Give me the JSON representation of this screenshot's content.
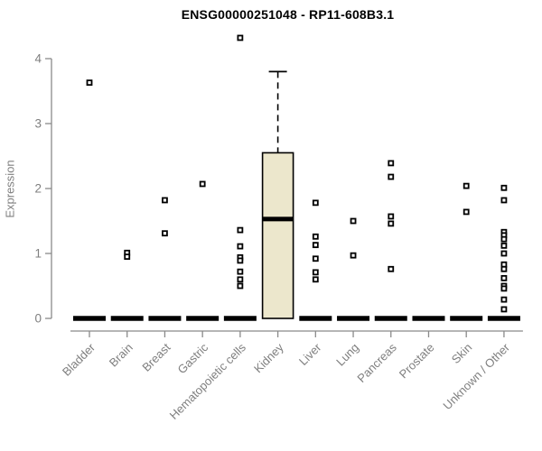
{
  "title": "ENSG00000251048 - RP11-608B3.1",
  "colors": {
    "background": "#ffffff",
    "box_fill": "#ece7cc",
    "data_color": "#000000",
    "axis_color": "#8a8a8a",
    "label_color": "#7f7f7f",
    "title_color": "#000000"
  },
  "chart_data": {
    "type": "box",
    "title": "ENSG00000251048 - RP11-608B3.1",
    "xlabel": "",
    "ylabel": "Expression",
    "ylim": [
      0,
      4.4
    ],
    "yticks": [
      0,
      1,
      2,
      3,
      4
    ],
    "grid": false,
    "legend": "none",
    "x_label_rotation": 45,
    "marker": "open-square",
    "categories": [
      "Bladder",
      "Brain",
      "Breast",
      "Gastric",
      "Hematopoietic cells",
      "Kidney",
      "Liver",
      "Lung",
      "Pancreas",
      "Prostate",
      "Skin",
      "Unknown / Other"
    ],
    "series": [
      {
        "name": "Bladder",
        "q1": 0,
        "median": 0,
        "q3": 0,
        "whisker_low": 0,
        "whisker_high": 0,
        "outliers": [
          3.63
        ]
      },
      {
        "name": "Brain",
        "q1": 0,
        "median": 0,
        "q3": 0,
        "whisker_low": 0,
        "whisker_high": 0,
        "outliers": [
          1.01,
          0.95
        ]
      },
      {
        "name": "Breast",
        "q1": 0,
        "median": 0,
        "q3": 0,
        "whisker_low": 0,
        "whisker_high": 0,
        "outliers": [
          1.82,
          1.31
        ]
      },
      {
        "name": "Gastric",
        "q1": 0,
        "median": 0,
        "q3": 0,
        "whisker_low": 0,
        "whisker_high": 0,
        "outliers": [
          2.07
        ]
      },
      {
        "name": "Hematopoietic cells",
        "q1": 0,
        "median": 0,
        "q3": 0,
        "whisker_low": 0,
        "whisker_high": 0,
        "outliers": [
          4.32,
          1.36,
          1.11,
          0.94,
          0.89,
          0.72,
          0.6,
          0.5
        ]
      },
      {
        "name": "Kidney",
        "q1": 0,
        "median": 1.53,
        "q3": 2.55,
        "whisker_low": 0,
        "whisker_high": 3.8,
        "outliers": []
      },
      {
        "name": "Liver",
        "q1": 0,
        "median": 0,
        "q3": 0,
        "whisker_low": 0,
        "whisker_high": 0,
        "outliers": [
          1.78,
          1.26,
          1.13,
          0.92,
          0.71,
          0.6
        ]
      },
      {
        "name": "Lung",
        "q1": 0,
        "median": 0,
        "q3": 0,
        "whisker_low": 0,
        "whisker_high": 0,
        "outliers": [
          1.5,
          0.97
        ]
      },
      {
        "name": "Pancreas",
        "q1": 0,
        "median": 0,
        "q3": 0,
        "whisker_low": 0,
        "whisker_high": 0,
        "outliers": [
          2.39,
          2.18,
          1.57,
          1.46,
          0.76
        ]
      },
      {
        "name": "Prostate",
        "q1": 0,
        "median": 0,
        "q3": 0,
        "whisker_low": 0,
        "whisker_high": 0,
        "outliers": []
      },
      {
        "name": "Skin",
        "q1": 0,
        "median": 0,
        "q3": 0,
        "whisker_low": 0,
        "whisker_high": 0,
        "outliers": [
          2.04,
          1.64
        ]
      },
      {
        "name": "Unknown / Other",
        "q1": 0,
        "median": 0,
        "q3": 0,
        "whisker_low": 0,
        "whisker_high": 0,
        "outliers": [
          2.01,
          1.82,
          1.33,
          1.28,
          1.22,
          1.12,
          1.0,
          0.83,
          0.76,
          0.62,
          0.5,
          0.46,
          0.29,
          0.14
        ]
      }
    ]
  }
}
